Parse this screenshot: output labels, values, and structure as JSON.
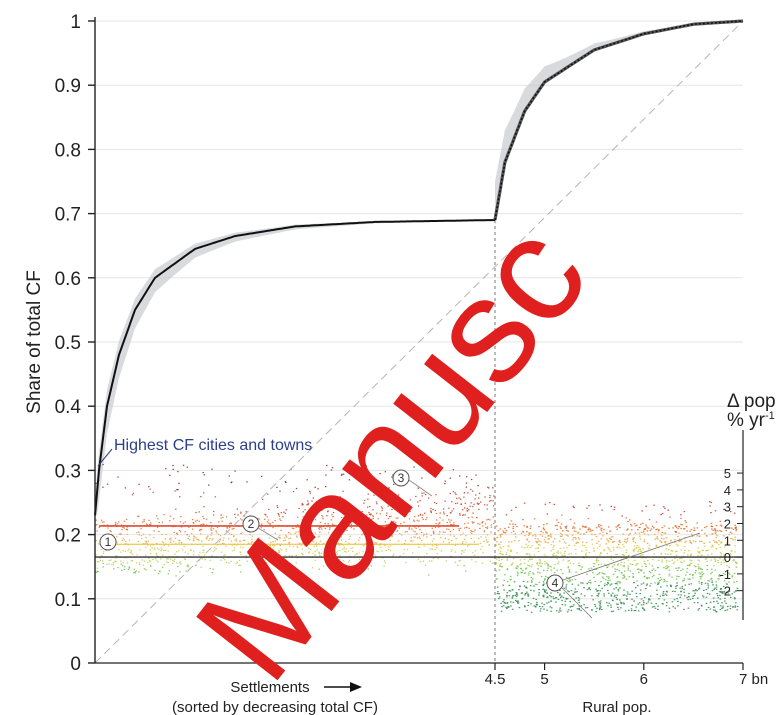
{
  "chart_data": {
    "type": "line",
    "title": "",
    "ylabel": "Share of total CF",
    "ylim": [
      0,
      1
    ],
    "yticks": [
      "0",
      "0.1",
      "0.2",
      "0.3",
      "0.4",
      "0.5",
      "0.6",
      "0.7",
      "0.8",
      "0.9",
      "1"
    ],
    "xticks": [
      "4.5",
      "5",
      "6",
      "7 bn"
    ],
    "x_label_settlements": "Settlements",
    "x_label_settlements_sub": "(sorted by decreasing total CF)",
    "x_label_rural": "Rural pop.",
    "rural_range": [
      4.5,
      7
    ],
    "settlement_share_at_boundary": 0.69,
    "cumulative_curve_settlements": [
      {
        "f": 0.0,
        "y": 0.23
      },
      {
        "f": 0.01,
        "y": 0.3
      },
      {
        "f": 0.03,
        "y": 0.4
      },
      {
        "f": 0.06,
        "y": 0.48
      },
      {
        "f": 0.1,
        "y": 0.55
      },
      {
        "f": 0.15,
        "y": 0.6
      },
      {
        "f": 0.25,
        "y": 0.645
      },
      {
        "f": 0.35,
        "y": 0.665
      },
      {
        "f": 0.5,
        "y": 0.68
      },
      {
        "f": 0.7,
        "y": 0.687
      },
      {
        "f": 1.0,
        "y": 0.69
      }
    ],
    "cumulative_curve_rural": [
      {
        "x": 4.5,
        "y": 0.69
      },
      {
        "x": 4.6,
        "y": 0.78
      },
      {
        "x": 4.8,
        "y": 0.86
      },
      {
        "x": 5.0,
        "y": 0.905
      },
      {
        "x": 5.5,
        "y": 0.955
      },
      {
        "x": 6.0,
        "y": 0.98
      },
      {
        "x": 6.5,
        "y": 0.995
      },
      {
        "x": 7.0,
        "y": 1.0
      }
    ],
    "baseline_share": 0.165,
    "delta_pop_axis": {
      "title_line1": "Δ pop",
      "title_line2": "% yr",
      "title_sup": "-1",
      "ticks": [
        "5",
        "4",
        "3",
        "2",
        "1",
        "0",
        "-1",
        "-2"
      ]
    },
    "annotation": "Highest CF cities and towns",
    "markers": [
      "1",
      "2",
      "3",
      "4"
    ],
    "watermark": "Manusc"
  }
}
